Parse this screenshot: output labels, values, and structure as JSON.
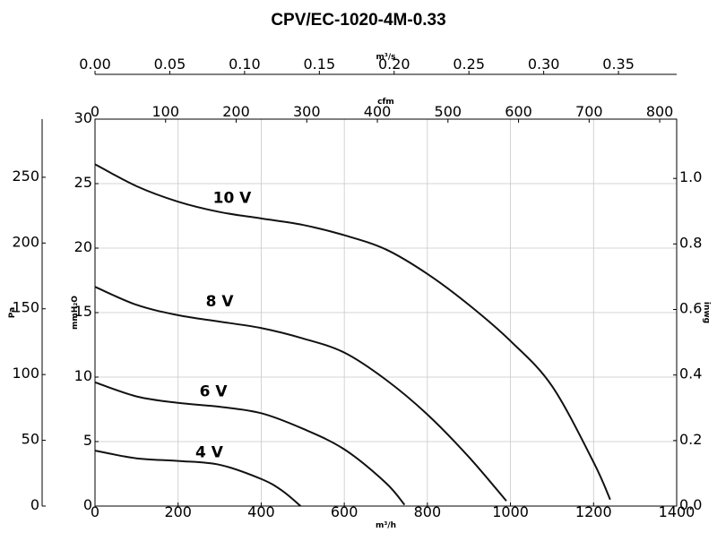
{
  "chart_data": {
    "title": "CPV/EC-1020-4M-0.33",
    "type": "line",
    "xlabel": "m³/h",
    "ylabel": "mmH₂O",
    "xlim": [
      0,
      1400
    ],
    "ylim": [
      0,
      30
    ],
    "grid": true,
    "x_ticks": [
      "0",
      "200",
      "400",
      "600",
      "800",
      "1000",
      "1200",
      "1400"
    ],
    "y_ticks": [
      "0",
      "5",
      "10",
      "15",
      "20",
      "25",
      "30"
    ],
    "secondary_axes": {
      "top_m3s": {
        "label": "m³/s",
        "range": [
          0,
          0.3889
        ],
        "ticks": [
          "0.00",
          "0.05",
          "0.10",
          "0.15",
          "0.20",
          "0.25",
          "0.30",
          "0.35"
        ]
      },
      "top_cfm": {
        "label": "cfm",
        "range": [
          0,
          824
        ],
        "ticks": [
          "0",
          "100",
          "200",
          "300",
          "400",
          "500",
          "600",
          "700",
          "800"
        ]
      },
      "left_pa": {
        "label": "Pa",
        "range": [
          0,
          294.2
        ],
        "ticks": [
          "0",
          "50",
          "100",
          "150",
          "200",
          "250"
        ]
      },
      "right_inwg": {
        "label": "inwg",
        "range": [
          0,
          1.181
        ],
        "ticks": [
          "0.0",
          "0.2",
          "0.4",
          "0.6",
          "0.8",
          "1.0"
        ]
      }
    },
    "series": [
      {
        "name": "10 V",
        "x": [
          0,
          100,
          200,
          300,
          400,
          500,
          600,
          700,
          800,
          900,
          1000,
          1100,
          1200,
          1240
        ],
        "y": [
          26.5,
          24.8,
          23.6,
          22.8,
          22.3,
          21.8,
          21.0,
          19.9,
          18.0,
          15.6,
          12.8,
          9.3,
          3.4,
          0.5
        ]
      },
      {
        "name": "8 V",
        "x": [
          0,
          100,
          200,
          300,
          400,
          500,
          600,
          700,
          800,
          900,
          990
        ],
        "y": [
          17.0,
          15.6,
          14.8,
          14.3,
          13.8,
          13.0,
          11.9,
          9.8,
          7.1,
          3.8,
          0.4
        ]
      },
      {
        "name": "6 V",
        "x": [
          0,
          100,
          200,
          300,
          400,
          500,
          600,
          700,
          745
        ],
        "y": [
          9.6,
          8.5,
          8.0,
          7.7,
          7.2,
          6.0,
          4.4,
          1.8,
          0.1
        ]
      },
      {
        "name": "4 V",
        "x": [
          0,
          100,
          200,
          300,
          400,
          450,
          495
        ],
        "y": [
          4.3,
          3.7,
          3.5,
          3.2,
          2.1,
          1.2,
          0.0
        ]
      }
    ]
  }
}
